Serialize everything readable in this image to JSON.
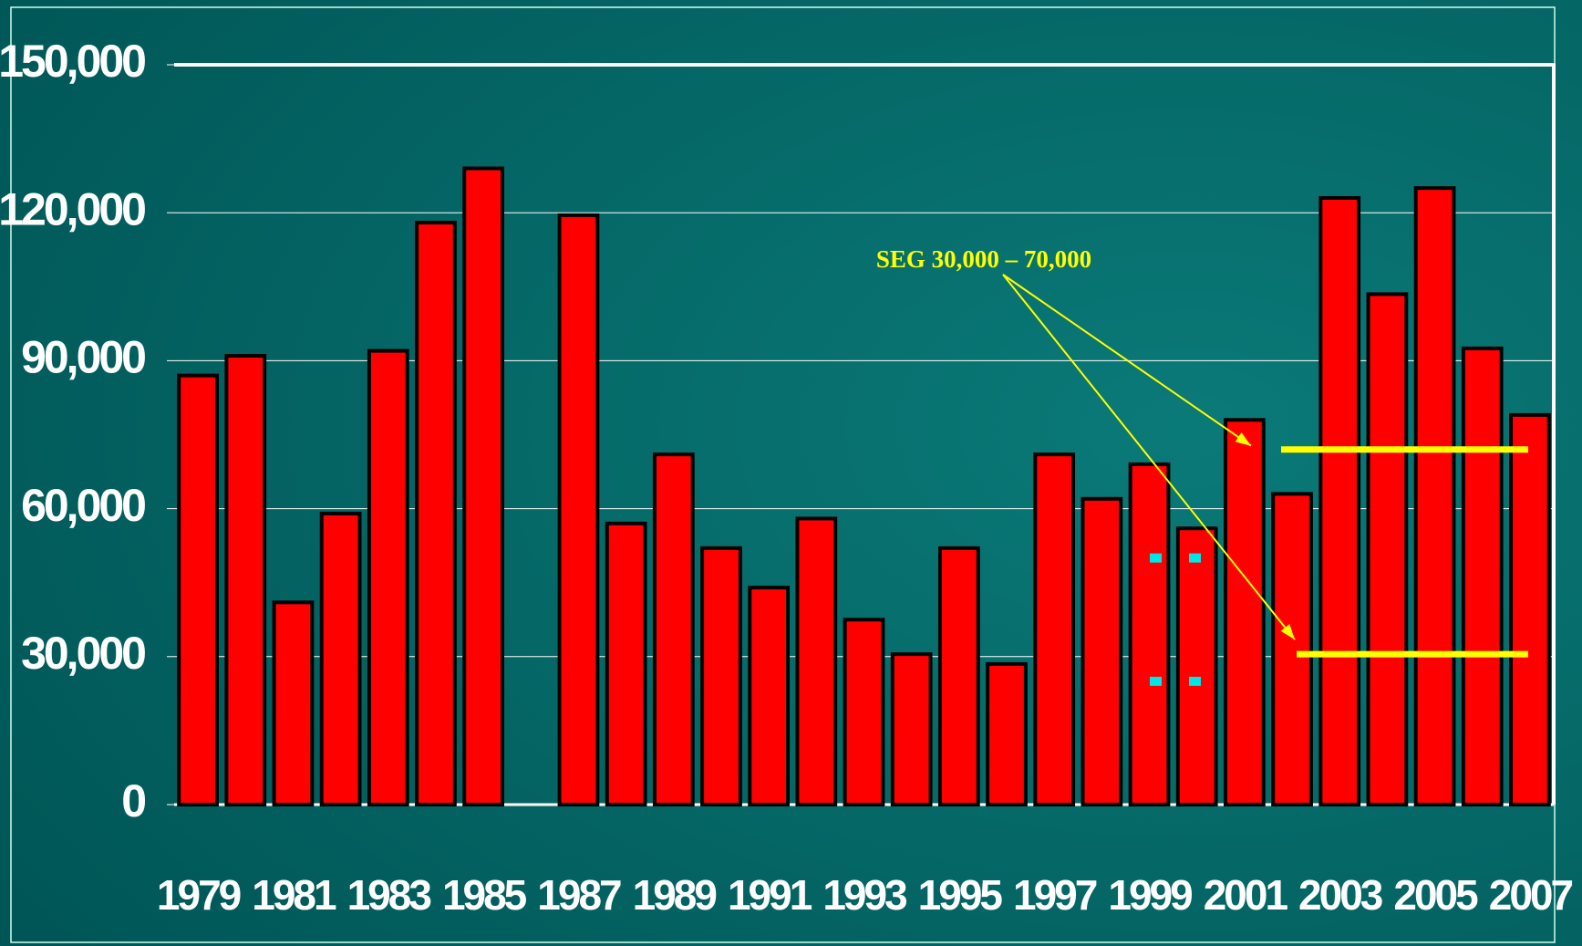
{
  "chart_data": {
    "type": "bar",
    "categories": [
      "1979",
      null,
      "1981",
      null,
      "1983",
      null,
      "1985",
      null,
      "1987",
      null,
      "1989",
      null,
      "1991",
      null,
      "1993",
      null,
      "1995",
      null,
      "1997",
      null,
      "1999",
      null,
      "2001",
      null,
      "2003",
      null,
      "2005",
      null,
      "2007"
    ],
    "values": [
      87000,
      91000,
      41000,
      59000,
      92000,
      118000,
      129000,
      null,
      119500,
      57000,
      71000,
      52000,
      44000,
      58000,
      37500,
      30500,
      52000,
      28500,
      71000,
      62000,
      69000,
      56000,
      78000,
      63000,
      123000,
      103500,
      125000,
      92500,
      79000
    ],
    "color": "#ff0000",
    "ylim": [
      0,
      150000
    ],
    "yticks": [
      0,
      {
        "value": 30000,
        "label": "30,000"
      },
      {
        "value": 60000,
        "label": "60,000"
      },
      {
        "value": 90000,
        "label": "90,000"
      },
      {
        "value": 120000,
        "label": "120,000"
      },
      {
        "value": 150000,
        "label": "150,000"
      }
    ],
    "grid": true,
    "annotation": {
      "text": "SEG 30,000 – 70,000",
      "color": "#ffff00",
      "lines": [
        72000,
        30500
      ]
    },
    "markers": {
      "color": "#00e5e5",
      "values": [
        50000,
        25000
      ]
    }
  }
}
